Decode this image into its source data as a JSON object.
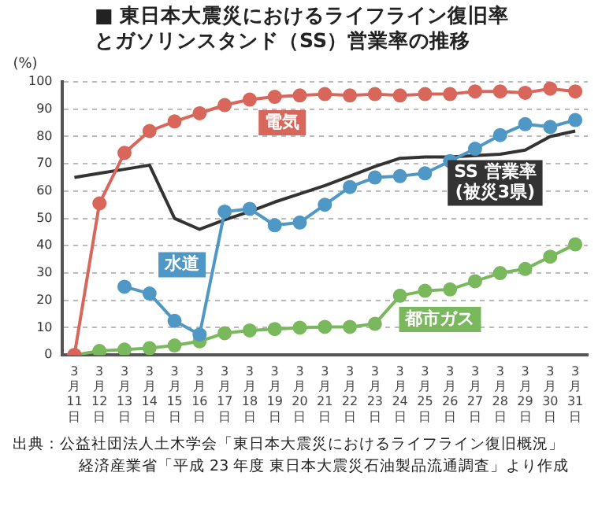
{
  "chart_data": {
    "type": "line",
    "title": "■ 東日本大震災におけるライフライン復旧率とガソリンスタンド（SS）営業率の推移",
    "ylabel": "(%)",
    "categories": [
      "3月11日",
      "3月12日",
      "3月13日",
      "3月14日",
      "3月15日",
      "3月16日",
      "3月17日",
      "3月18日",
      "3月19日",
      "3月20日",
      "3月21日",
      "3月22日",
      "3月23日",
      "3月24日",
      "3月25日",
      "3月26日",
      "3月27日",
      "3月28日",
      "3月29日",
      "3月30日",
      "3月31日"
    ],
    "series": [
      {
        "name": "電気",
        "color": "#d9665a",
        "values": [
          0,
          55.5,
          74,
          82,
          85.5,
          88.5,
          91.5,
          93.5,
          94.5,
          95,
          95.5,
          95,
          95.5,
          95,
          95.5,
          95.5,
          96.5,
          96.5,
          96,
          97.5,
          96.5
        ]
      },
      {
        "name": "水道",
        "color": "#4f97c4",
        "values": [
          null,
          null,
          25,
          22.5,
          12.5,
          7.5,
          52.5,
          53.5,
          47.5,
          48.5,
          55,
          61.5,
          65,
          65.5,
          66.5,
          71,
          75.5,
          80.5,
          84.5,
          83.5,
          86
        ]
      },
      {
        "name": "SS 営業率\n(被災3県)",
        "color": "#333333",
        "marker": "none",
        "values": [
          65,
          66.5,
          68,
          69.5,
          50,
          46,
          49.5,
          52.5,
          56,
          59,
          62,
          65.5,
          69,
          72,
          72.5,
          72.5,
          73,
          73.5,
          75,
          80,
          82
        ]
      },
      {
        "name": "都市ガス",
        "color": "#7ab85e",
        "values": [
          0,
          1.5,
          2,
          2.5,
          3.5,
          5,
          8,
          9,
          9.5,
          10,
          10.3,
          10.3,
          11.4,
          21.7,
          23.5,
          24,
          27,
          30,
          31.5,
          36,
          40.5
        ]
      }
    ],
    "ylim": [
      0,
      100
    ],
    "yticks": [
      0,
      10,
      20,
      30,
      40,
      50,
      60,
      70,
      80,
      90,
      100
    ],
    "grid": "y",
    "line_style": "solid",
    "marker": "circle",
    "annotations": [
      "出典：公益社団法人土木学会「東日本大震災におけるライフライン復旧概況」",
      "経済産業省「平成 23 年度 東日本大震災石油製品流通調査」より作成"
    ]
  }
}
